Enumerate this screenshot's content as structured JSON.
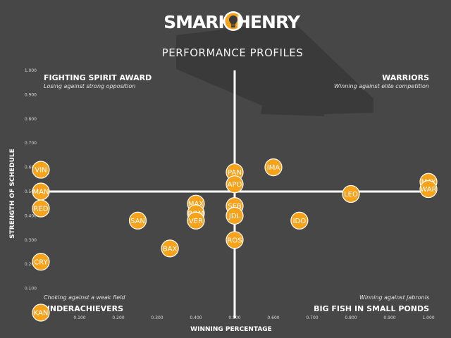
{
  "logo": {
    "left_text": "SMARK",
    "right_text": "HENRY"
  },
  "chart_data": {
    "type": "scatter",
    "title": "PERFORMANCE PROFILES",
    "xlabel": "WINNING PERCENTAGE",
    "ylabel": "STRENGTH OF SCHEDULE",
    "xlim": [
      0,
      1
    ],
    "ylim": [
      0,
      1
    ],
    "x_ticks": [
      "0.100",
      "0.200",
      "0.300",
      "0.400",
      "0.500",
      "0.600",
      "0.700",
      "0.800",
      "0.900",
      "1.000"
    ],
    "y_ticks": [
      "0.100",
      "0.200",
      "0.300",
      "0.400",
      "0.500",
      "0.600",
      "0.700",
      "0.800",
      "0.900",
      "1.000"
    ],
    "reference_lines": {
      "x": 0.5,
      "y": 0.5
    },
    "quadrants": [
      {
        "id": "top-left",
        "title": "FIGHTING SPIRIT AWARD",
        "subtitle": "Losing against strong opposition"
      },
      {
        "id": "top-right",
        "title": "WARRIORS",
        "subtitle": "Winning against elite competition"
      },
      {
        "id": "bottom-left",
        "title": "UNDERACHIEVERS",
        "subtitle": "Choking against a weak field"
      },
      {
        "id": "bottom-right",
        "title": "BIG FISH IN SMALL PONDS",
        "subtitle": "Winning against jabronis"
      }
    ],
    "points": [
      {
        "label": "VIN",
        "x": 0.0,
        "y": 0.59
      },
      {
        "label": "MAN",
        "x": 0.0,
        "y": 0.5
      },
      {
        "label": "RED",
        "x": 0.0,
        "y": 0.43
      },
      {
        "label": "CRY",
        "x": 0.0,
        "y": 0.21
      },
      {
        "label": "KAN",
        "x": 0.0,
        "y": 0.0
      },
      {
        "label": "SAN",
        "x": 0.25,
        "y": 0.38
      },
      {
        "label": "BAX",
        "x": 0.333,
        "y": 0.265
      },
      {
        "label": "MAX",
        "x": 0.4,
        "y": 0.45
      },
      {
        "label": "BOM",
        "x": 0.4,
        "y": 0.41
      },
      {
        "label": "VER",
        "x": 0.4,
        "y": 0.38
      },
      {
        "label": "PAN",
        "x": 0.5,
        "y": 0.58
      },
      {
        "label": "APO",
        "x": 0.5,
        "y": 0.53
      },
      {
        "label": "SEB",
        "x": 0.5,
        "y": 0.44
      },
      {
        "label": "JDL",
        "x": 0.5,
        "y": 0.4
      },
      {
        "label": "ROS",
        "x": 0.5,
        "y": 0.3
      },
      {
        "label": "IMA",
        "x": 0.6,
        "y": 0.6
      },
      {
        "label": "IDO",
        "x": 0.667,
        "y": 0.38
      },
      {
        "label": "LEO",
        "x": 0.8,
        "y": 0.49
      },
      {
        "label": "MAY",
        "x": 1.0,
        "y": 0.54
      },
      {
        "label": "WAR",
        "x": 1.0,
        "y": 0.51
      }
    ],
    "colors": {
      "background": "#474747",
      "point_fill": "#f7a21b",
      "point_stroke": "#ffffff",
      "reference_line": "#ffffff",
      "shadow": "#3a3a3a"
    }
  }
}
